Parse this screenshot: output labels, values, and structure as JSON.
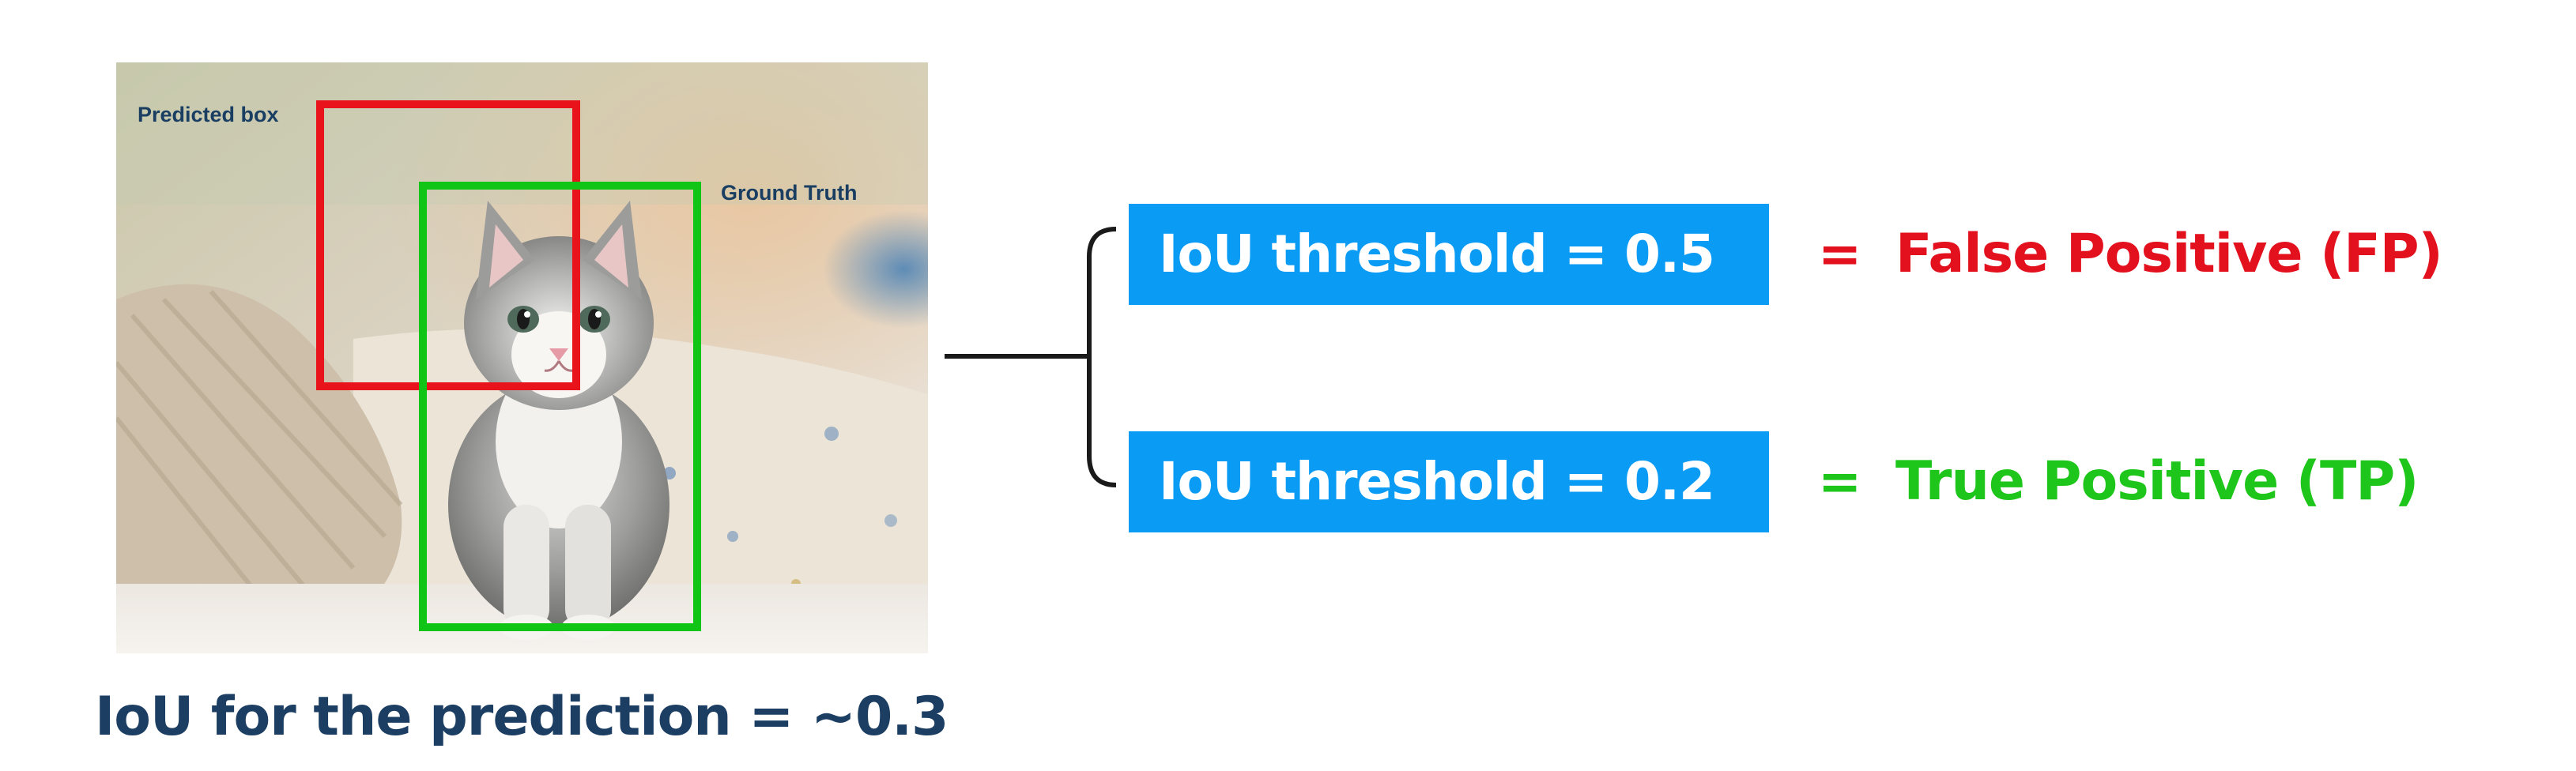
{
  "photo": {
    "predicted_label": "Predicted  box",
    "ground_truth_label": "Ground Truth",
    "predicted_color": "#e8131b",
    "ground_truth_color": "#11c516"
  },
  "caption": "IoU for the prediction = ~0.3",
  "rows": [
    {
      "threshold": "IoU threshold = 0.5",
      "equals": "=",
      "result": "False Positive (FP)",
      "result_color": "#e3101e",
      "equals_color": "#e3101e"
    },
    {
      "threshold": "IoU threshold = 0.2",
      "equals": "=",
      "result": "True Positive (TP)",
      "result_color": "#1ec51a",
      "equals_color": "#1ec51a"
    }
  ],
  "colors": {
    "threshold_bg": "#0a9bf4",
    "caption": "#1b3e62",
    "connector": "#1a1a1a"
  }
}
